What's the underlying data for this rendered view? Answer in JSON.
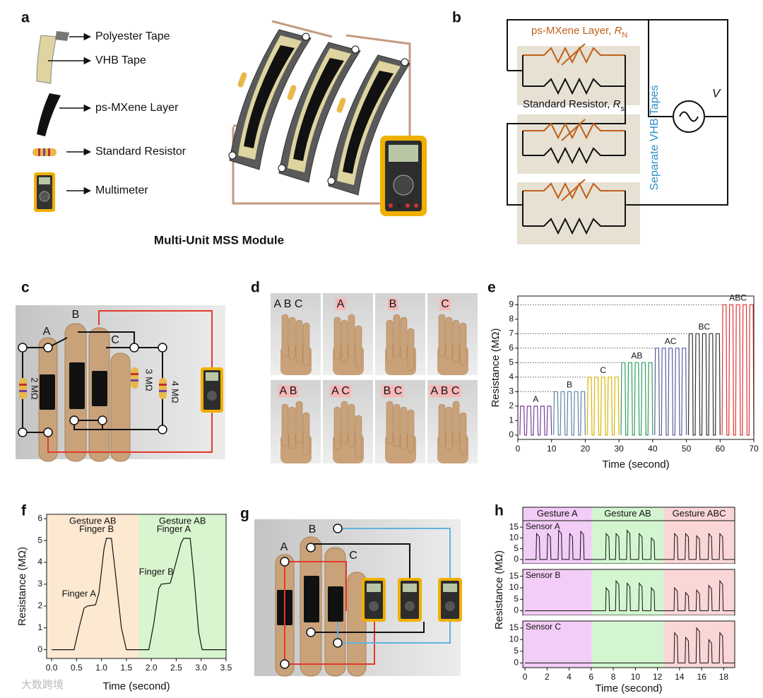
{
  "panels": {
    "a": {
      "label": "a",
      "items": [
        "Polyester Tape",
        "VHB Tape",
        "ps-MXene Layer",
        "Standard Resistor",
        "Multimeter"
      ],
      "caption": "Multi-Unit MSS Module"
    },
    "b": {
      "label": "b",
      "layer_label": "ps-MXene Layer, ",
      "layer_symbol": "R",
      "layer_sub": "N",
      "resistor_label": "Standard Resistor, ",
      "resistor_symbol": "R",
      "resistor_sub": "s",
      "tapes": "Separate VHB Tapes",
      "source": "V"
    },
    "c": {
      "label": "c",
      "fingers": [
        "A",
        "B",
        "C"
      ],
      "resistors": [
        "2 MΩ",
        "3 MΩ",
        "4 MΩ"
      ]
    },
    "d": {
      "label": "d",
      "gestures": [
        "A B C",
        "A",
        "B",
        "C",
        "A B",
        "A C",
        "B C",
        "A B C"
      ]
    },
    "g": {
      "label": "g",
      "fingers": [
        "A",
        "B",
        "C"
      ]
    },
    "watermark": "大数跨境"
  },
  "chart_data": [
    {
      "label": "e",
      "type": "line",
      "xlabel": "Time (second)",
      "ylabel": "Resistance (MΩ)",
      "xlim": [
        0,
        70
      ],
      "xticks": [
        0,
        10,
        20,
        30,
        40,
        50,
        60,
        70
      ],
      "ylim": [
        -0.3,
        9.6
      ],
      "yticks": [
        0,
        1,
        2,
        3,
        4,
        5,
        6,
        7,
        8,
        9
      ],
      "series": [
        {
          "name": "A",
          "color": "#7a3f9e",
          "x": [
            0.6,
            0.8,
            1.8,
            2.0,
            2.6,
            2.8,
            3.8,
            4.0,
            4.6,
            4.8,
            5.8,
            6.0,
            6.6,
            6.8,
            7.8,
            8.0,
            8.6,
            8.8,
            9.8,
            10.0
          ],
          "values": [
            0,
            2,
            2,
            0,
            0,
            2,
            2,
            0,
            0,
            2,
            2,
            0,
            0,
            2,
            2,
            0,
            0,
            2,
            2,
            0
          ]
        },
        {
          "name": "B",
          "color": "#5b84a6",
          "x": [
            10.6,
            10.8,
            11.8,
            12.0,
            12.6,
            12.8,
            13.8,
            14.0,
            14.6,
            14.8,
            15.8,
            16.0,
            16.6,
            16.8,
            17.8,
            18.0,
            18.6,
            18.8,
            19.8,
            20.0
          ],
          "values": [
            0,
            3,
            3,
            0,
            0,
            3,
            3,
            0,
            0,
            3,
            3,
            0,
            0,
            3,
            3,
            0,
            0,
            3,
            3,
            0
          ]
        },
        {
          "name": "C",
          "color": "#d8b400",
          "x": [
            20.6,
            20.8,
            21.8,
            22.0,
            22.6,
            22.8,
            23.8,
            24.0,
            24.6,
            24.8,
            25.8,
            26.0,
            26.6,
            26.8,
            27.8,
            28.0,
            28.6,
            28.8,
            29.8,
            30.0
          ],
          "values": [
            0,
            4,
            4,
            0,
            0,
            4,
            4,
            0,
            0,
            4,
            4,
            0,
            0,
            4,
            4,
            0,
            0,
            4,
            4,
            0
          ]
        },
        {
          "name": "AB",
          "color": "#2e9e5c",
          "x": [
            30.6,
            30.8,
            31.8,
            32.0,
            32.6,
            32.8,
            33.8,
            34.0,
            34.6,
            34.8,
            35.8,
            36.0,
            36.6,
            36.8,
            37.8,
            38.0,
            38.6,
            38.8,
            39.8,
            40.0
          ],
          "values": [
            0,
            5,
            5,
            0,
            0,
            5,
            5,
            0,
            0,
            5,
            5,
            0,
            0,
            5,
            5,
            0,
            0,
            5,
            5,
            0
          ]
        },
        {
          "name": "AC",
          "color": "#5a5e9e",
          "x": [
            40.6,
            40.8,
            41.8,
            42.0,
            42.6,
            42.8,
            43.8,
            44.0,
            44.6,
            44.8,
            45.8,
            46.0,
            46.6,
            46.8,
            47.8,
            48.0,
            48.6,
            48.8,
            49.8,
            50.0
          ],
          "values": [
            0,
            6,
            6,
            0,
            0,
            6,
            6,
            0,
            0,
            6,
            6,
            0,
            0,
            6,
            6,
            0,
            0,
            6,
            6,
            0
          ]
        },
        {
          "name": "BC",
          "color": "#333333",
          "x": [
            50.6,
            50.8,
            51.8,
            52.0,
            52.6,
            52.8,
            53.8,
            54.0,
            54.6,
            54.8,
            55.8,
            56.0,
            56.6,
            56.8,
            57.8,
            58.0,
            58.6,
            58.8,
            59.8,
            60.0
          ],
          "values": [
            0,
            7,
            7,
            0,
            0,
            7,
            7,
            0,
            0,
            7,
            7,
            0,
            0,
            7,
            7,
            0,
            0,
            7,
            7,
            0
          ]
        },
        {
          "name": "ABC",
          "color": "#e23434",
          "x": [
            60.6,
            60.8,
            61.8,
            62.0,
            62.6,
            62.8,
            63.8,
            64.0,
            64.6,
            64.8,
            65.8,
            66.0,
            66.6,
            66.8,
            67.8,
            68.0,
            68.6,
            68.8,
            69.8,
            70.0
          ],
          "values": [
            0,
            9,
            9,
            0,
            0,
            9,
            9,
            0,
            0,
            9,
            9,
            0,
            0,
            9,
            9,
            0,
            0,
            9,
            9,
            0
          ]
        }
      ]
    },
    {
      "label": "f",
      "type": "line",
      "xlabel": "Time (second)",
      "ylabel": "Resistance (MΩ)",
      "xlim": [
        -0.1,
        3.5
      ],
      "xticks": [
        {
          "value": 0,
          "label": "0.0"
        },
        0.5,
        {
          "value": 1,
          "label": "1.0"
        },
        1.5,
        {
          "value": 2,
          "label": "2.0"
        },
        2.5,
        {
          "value": 3,
          "label": "3.0"
        },
        3.5
      ],
      "ylim": [
        -0.4,
        6.2
      ],
      "yticks": [
        0,
        1,
        2,
        3,
        4,
        5,
        6
      ],
      "regions": [
        {
          "label": "Gesture AB",
          "x": [
            -0.1,
            1.75
          ],
          "color": "#fde9d2"
        },
        {
          "label": "Gesture AB",
          "x": [
            1.75,
            3.5
          ],
          "color": "#d8f5d0"
        }
      ],
      "annotations": [
        {
          "text": "Finger A",
          "x": 0.55,
          "y": 2.55
        },
        {
          "text": "Finger B",
          "x": 0.9,
          "y": 5.5
        },
        {
          "text": "Finger B",
          "x": 2.1,
          "y": 3.55
        },
        {
          "text": "Finger A",
          "x": 2.45,
          "y": 5.5
        }
      ],
      "series": [
        {
          "color": "#111111",
          "x": [
            0,
            0.45,
            0.55,
            0.65,
            0.72,
            0.88,
            0.95,
            1.05,
            1.1,
            1.2,
            1.28,
            1.4,
            1.5,
            1.95,
            2.05,
            2.15,
            2.2,
            2.38,
            2.45,
            2.6,
            2.65,
            2.78,
            2.85,
            2.95,
            3.02,
            3.5
          ],
          "values": [
            0,
            0,
            1.0,
            1.9,
            2.0,
            2.05,
            2.6,
            4.6,
            5.1,
            5.1,
            3.5,
            1.0,
            0,
            0,
            1.2,
            2.8,
            3.0,
            3.05,
            3.6,
            4.9,
            5.1,
            5.1,
            3.5,
            0.8,
            0,
            0
          ]
        }
      ]
    },
    {
      "label": "h",
      "type": "line",
      "layout": "stacked",
      "xlabel": "Time (second)",
      "ylabel": "Resistance (MΩ)",
      "xlim": [
        -0.2,
        19
      ],
      "xticks": [
        0,
        2,
        4,
        6,
        8,
        10,
        12,
        14,
        16,
        18
      ],
      "ylim": [
        -2,
        18
      ],
      "yticks": [
        0,
        5,
        10,
        15
      ],
      "regions": [
        {
          "label": "Gesture A",
          "x": [
            -0.2,
            6.05
          ],
          "color": "#f2cdf7"
        },
        {
          "label": "Gesture AB",
          "x": [
            6.05,
            12.55
          ],
          "color": "#d3f6d0"
        },
        {
          "label": "Gesture ABC",
          "x": [
            12.55,
            19
          ],
          "color": "#fbd6d6"
        }
      ],
      "series": [
        {
          "name": "Sensor A",
          "color": "#111111",
          "x": [
            0,
            1.0,
            1.05,
            1.3,
            1.35,
            2.0,
            2.05,
            2.3,
            2.35,
            3.0,
            3.05,
            3.3,
            3.35,
            4.0,
            4.05,
            4.3,
            4.35,
            5.0,
            5.05,
            5.3,
            5.35,
            7.3,
            7.35,
            7.6,
            7.65,
            8.2,
            8.25,
            8.5,
            8.55,
            9.2,
            9.25,
            9.5,
            9.55,
            10.3,
            10.35,
            10.6,
            10.65,
            11.4,
            11.45,
            11.7,
            11.75,
            13.5,
            13.55,
            13.8,
            13.85,
            14.5,
            14.55,
            14.8,
            14.85,
            15.5,
            15.55,
            15.8,
            15.85,
            16.6,
            16.65,
            16.9,
            16.95,
            17.6,
            17.65,
            17.9,
            17.95,
            19
          ],
          "values": [
            0,
            0,
            12,
            10.5,
            0,
            0,
            12,
            10.5,
            0,
            0,
            13.5,
            12,
            0,
            0,
            12,
            10.5,
            0,
            0,
            13,
            11.5,
            0,
            0,
            12,
            10.5,
            0,
            0,
            12,
            10.5,
            0,
            0,
            13.5,
            12,
            0,
            0,
            12,
            10.5,
            0,
            0,
            10,
            8.5,
            0,
            0,
            12,
            10.5,
            0,
            0,
            12,
            10.5,
            0,
            0,
            11,
            9.5,
            0,
            0,
            12,
            10.5,
            0,
            0,
            12,
            10.5,
            0,
            0
          ]
        },
        {
          "name": "Sensor B",
          "color": "#111111",
          "x": [
            0,
            7.3,
            7.35,
            7.6,
            7.65,
            8.2,
            8.25,
            8.5,
            8.55,
            9.2,
            9.25,
            9.5,
            9.55,
            10.3,
            10.35,
            10.6,
            10.65,
            11.4,
            11.45,
            11.7,
            11.75,
            13.5,
            13.55,
            13.8,
            13.85,
            14.5,
            14.55,
            14.8,
            14.85,
            15.5,
            15.55,
            15.8,
            15.85,
            16.6,
            16.65,
            16.9,
            16.95,
            17.6,
            17.65,
            17.9,
            17.95,
            19
          ],
          "values": [
            0,
            0,
            10,
            8.5,
            0,
            0,
            13,
            11.5,
            0,
            0,
            12,
            10.5,
            0,
            0,
            12,
            10.5,
            0,
            0,
            10,
            8.5,
            0,
            0,
            10,
            8.5,
            0,
            0,
            8,
            6.5,
            0,
            0,
            9,
            7.5,
            0,
            0,
            11,
            9.5,
            0,
            0,
            13,
            11.5,
            0,
            0
          ]
        },
        {
          "name": "Sensor C",
          "color": "#111111",
          "x": [
            0,
            13.5,
            13.55,
            13.8,
            13.85,
            14.5,
            14.55,
            14.8,
            14.85,
            15.5,
            15.55,
            15.8,
            15.85,
            16.6,
            16.65,
            16.9,
            16.95,
            17.6,
            17.65,
            17.9,
            17.95,
            19
          ],
          "values": [
            0,
            0,
            13,
            11.5,
            0,
            0,
            11,
            9.5,
            0,
            0,
            15,
            13.5,
            0,
            0,
            10,
            8.5,
            0,
            0,
            13,
            11.5,
            0,
            0
          ]
        }
      ]
    }
  ]
}
